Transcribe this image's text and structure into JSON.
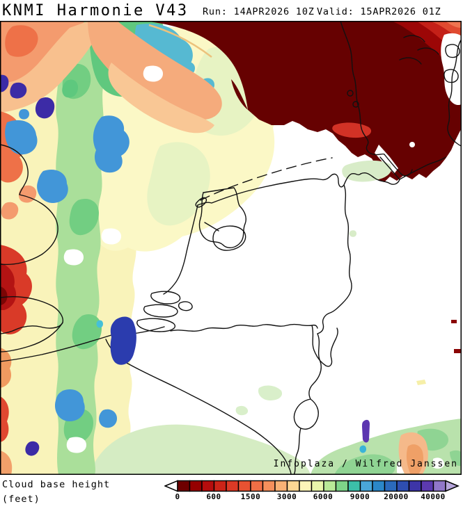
{
  "header": {
    "title": "KNMI Harmonie V43",
    "run": "Run: 14APR2026 10Z",
    "valid": "Valid: 15APR2026 01Z"
  },
  "map": {
    "attribution": "Infoplaza / Wilfred Janssen",
    "palette": {
      "low_cloud_maroon": "#660101",
      "dark_red": "#b31313",
      "red": "#d93a28",
      "orange": "#ee7148",
      "salmon": "#f49b6e",
      "peach": "#f8c08e",
      "cream": "#f9f3ba",
      "pale_yellow": "#fbf8c6",
      "pale_green": "#e7f3c3",
      "sage": "#d5ecc3",
      "light_green": "#aadf9a",
      "green": "#72ce82",
      "deep_green": "#5ec87e",
      "teal": "#56b9d2",
      "sky_blue": "#4296d8",
      "periwinkle": "#94a5e2",
      "navy": "#2b3cae",
      "indigo": "#3c2ba6",
      "purple": "#5c36b0",
      "outline": "#000000"
    }
  },
  "legend": {
    "title_line1": "Cloud base height",
    "title_line2": "(feet)",
    "ticks": [
      "0",
      "600",
      "1500",
      "3000",
      "6000",
      "9000",
      "20000",
      "40000"
    ],
    "colors": [
      "#6e0000",
      "#960000",
      "#b60d0d",
      "#cc2418",
      "#dc3a26",
      "#e85232",
      "#f06f46",
      "#f6905c",
      "#f9b276",
      "#fcd694",
      "#fdf4b8",
      "#e9f5ab",
      "#b9e998",
      "#7ed489",
      "#3cbfa9",
      "#4aa6d8",
      "#2b87c8",
      "#2b6abc",
      "#2e4eb2",
      "#3d35a8",
      "#5c3ab0",
      "#9177c9"
    ],
    "arrow_left_color": "#ffffff",
    "arrow_right_color": "#b7a6dc"
  }
}
